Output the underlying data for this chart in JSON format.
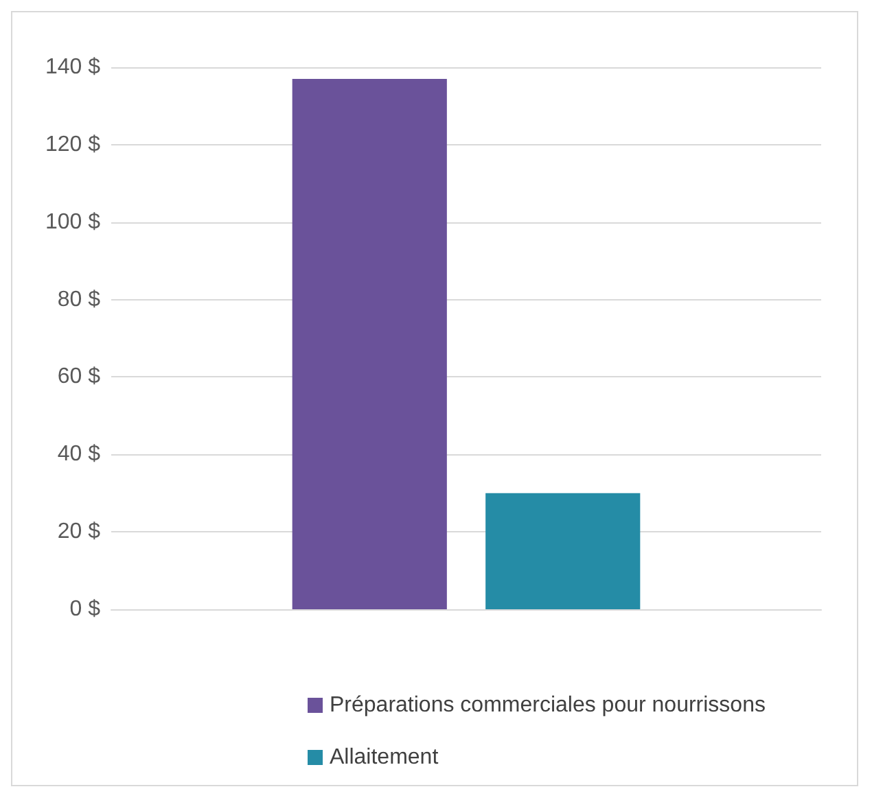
{
  "chart_data": {
    "type": "bar",
    "categories": [
      null
    ],
    "series": [
      {
        "name": "Préparations commerciales pour nourrissons",
        "color": "#6a529a",
        "values": [
          137
        ]
      },
      {
        "name": "Allaitement",
        "color": "#258ca6",
        "values": [
          30
        ]
      }
    ],
    "ylim": [
      0,
      140
    ],
    "yticks": [
      {
        "value": 0,
        "label": "0 $"
      },
      {
        "value": 20,
        "label": "20 $"
      },
      {
        "value": 40,
        "label": "40 $"
      },
      {
        "value": 60,
        "label": "60 $"
      },
      {
        "value": 80,
        "label": "80 $"
      },
      {
        "value": 100,
        "label": "100 $"
      },
      {
        "value": 120,
        "label": "120 $"
      },
      {
        "value": 140,
        "label": "140 $"
      }
    ],
    "grid": "y",
    "legend": "bottom"
  }
}
